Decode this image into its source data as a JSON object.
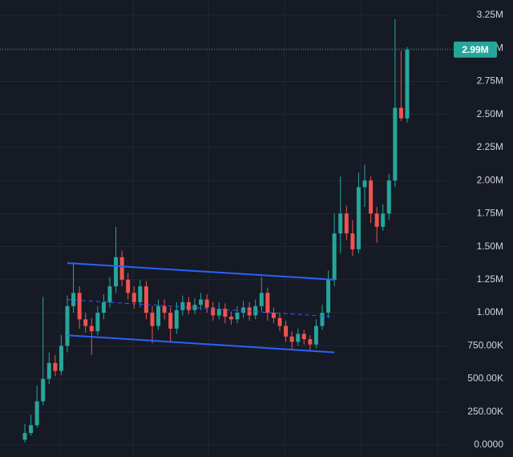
{
  "chart_data": {
    "type": "candlestick",
    "up_color": "#26a69a",
    "down_color": "#ef5350",
    "open": [
      40000,
      90000,
      150000,
      330000,
      500000,
      620000,
      560000,
      750000,
      1050000,
      1150000,
      950000,
      900000,
      860000,
      1000000,
      1080000,
      1200000,
      1420000,
      1250000,
      1150000,
      1080000,
      1200000,
      1000000,
      900000,
      1050000,
      1000000,
      880000,
      1020000,
      1080000,
      1020000,
      1060000,
      1100000,
      1040000,
      980000,
      1030000,
      970000,
      950000,
      1000000,
      1040000,
      980000,
      1050000,
      1150000,
      1000000,
      960000,
      900000,
      820000,
      780000,
      840000,
      800000,
      760000,
      900000,
      1000000,
      1250000,
      1600000,
      1750000,
      1600000,
      1480000,
      1950000,
      2000000,
      1750000,
      1650000,
      1750000,
      2000000,
      2550000,
      2470000
    ],
    "high": [
      160000,
      230000,
      450000,
      1120000,
      700000,
      680000,
      830000,
      1130000,
      1380000,
      1200000,
      1000000,
      960000,
      1050000,
      1140000,
      1270000,
      1650000,
      1470000,
      1300000,
      1200000,
      1250000,
      1240000,
      1050000,
      1100000,
      1100000,
      1040000,
      1080000,
      1130000,
      1120000,
      1110000,
      1150000,
      1140000,
      1080000,
      1080000,
      1070000,
      1010000,
      1050000,
      1090000,
      1080000,
      1100000,
      1270000,
      1190000,
      1040000,
      1000000,
      940000,
      860000,
      880000,
      870000,
      830000,
      950000,
      1060000,
      1320000,
      1750000,
      2030000,
      1810000,
      1700000,
      2060000,
      2120000,
      2030000,
      1800000,
      1820000,
      2050000,
      3220000,
      2980000,
      3010000
    ],
    "low": [
      20000,
      70000,
      130000,
      300000,
      460000,
      520000,
      530000,
      700000,
      1000000,
      880000,
      850000,
      680000,
      830000,
      950000,
      1040000,
      1150000,
      1200000,
      1100000,
      1030000,
      1040000,
      950000,
      770000,
      870000,
      950000,
      780000,
      840000,
      980000,
      990000,
      990000,
      1020000,
      1000000,
      940000,
      950000,
      920000,
      910000,
      920000,
      960000,
      940000,
      950000,
      1010000,
      940000,
      920000,
      860000,
      780000,
      720000,
      750000,
      760000,
      710000,
      730000,
      870000,
      960000,
      1200000,
      1450000,
      1550000,
      1430000,
      1450000,
      1800000,
      1680000,
      1530000,
      1620000,
      1700000,
      1950000,
      2450000,
      2440000
    ],
    "close": [
      90000,
      150000,
      330000,
      500000,
      620000,
      560000,
      750000,
      1050000,
      1150000,
      950000,
      900000,
      860000,
      1000000,
      1080000,
      1200000,
      1420000,
      1250000,
      1150000,
      1080000,
      1200000,
      1000000,
      900000,
      1050000,
      1000000,
      880000,
      1020000,
      1080000,
      1020000,
      1060000,
      1100000,
      1040000,
      980000,
      1030000,
      970000,
      950000,
      1000000,
      1040000,
      980000,
      1050000,
      1150000,
      1000000,
      960000,
      900000,
      820000,
      780000,
      840000,
      800000,
      760000,
      900000,
      1000000,
      1250000,
      1600000,
      1750000,
      1600000,
      1480000,
      1950000,
      2000000,
      1750000,
      1650000,
      1750000,
      2000000,
      2550000,
      2470000,
      2990000
    ],
    "ylim": [
      0,
      3250000
    ],
    "yticks": [
      {
        "value": 0,
        "label": "0.0000"
      },
      {
        "value": 250000,
        "label": "250.00K"
      },
      {
        "value": 500000,
        "label": "500.00K"
      },
      {
        "value": 750000,
        "label": "750.00K"
      },
      {
        "value": 1000000,
        "label": "1.00M"
      },
      {
        "value": 1250000,
        "label": "1.25M"
      },
      {
        "value": 1500000,
        "label": "1.50M"
      },
      {
        "value": 1750000,
        "label": "1.75M"
      },
      {
        "value": 2000000,
        "label": "2.00M"
      },
      {
        "value": 2250000,
        "label": "2.25M"
      },
      {
        "value": 2500000,
        "label": "2.50M"
      },
      {
        "value": 2750000,
        "label": "2.75M"
      },
      {
        "value": 3000000,
        "label": "3.00M"
      },
      {
        "value": 3250000,
        "label": "3.25M"
      }
    ],
    "last_price": {
      "value": 2990000,
      "label": "2.99M",
      "color": "#26a69a"
    },
    "trendlines": [
      {
        "style": "solid",
        "color": "#2962ff",
        "x": [
          7,
          51
        ],
        "values": [
          1376000,
          1250000
        ]
      },
      {
        "style": "dashed",
        "color": "#2962ff",
        "x": [
          7,
          51
        ],
        "values": [
          1100000,
          970000
        ]
      },
      {
        "style": "solid",
        "color": "#2962ff",
        "x": [
          7,
          51
        ],
        "values": [
          830000,
          700000
        ]
      }
    ],
    "grid": true
  }
}
